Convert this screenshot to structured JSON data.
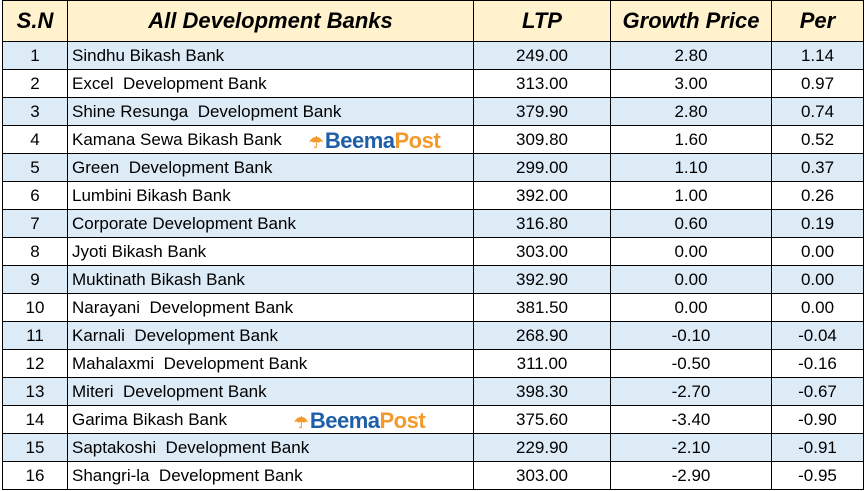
{
  "headers": {
    "sn": "S.N",
    "name": "All Development Banks",
    "ltp": "LTP",
    "growth": "Growth Price",
    "per": "Per"
  },
  "watermark": {
    "part1": "Beema",
    "part2": "Post",
    "icon": "umbrella-icon"
  },
  "rows": [
    {
      "sn": "1",
      "name": "Sindhu Bikash Bank",
      "ltp": "249.00",
      "growth": "2.80",
      "per": "1.14"
    },
    {
      "sn": "2",
      "name": "Excel  Development Bank",
      "ltp": "313.00",
      "growth": "3.00",
      "per": "0.97"
    },
    {
      "sn": "3",
      "name": "Shine Resunga  Development Bank",
      "ltp": "379.90",
      "growth": "2.80",
      "per": "0.74"
    },
    {
      "sn": "4",
      "name": "Kamana Sewa Bikash Bank",
      "ltp": "309.80",
      "growth": "1.60",
      "per": "0.52"
    },
    {
      "sn": "5",
      "name": "Green  Development Bank",
      "ltp": "299.00",
      "growth": "1.10",
      "per": "0.37"
    },
    {
      "sn": "6",
      "name": "Lumbini Bikash Bank",
      "ltp": "392.00",
      "growth": "1.00",
      "per": "0.26"
    },
    {
      "sn": "7",
      "name": "Corporate Development Bank",
      "ltp": "316.80",
      "growth": "0.60",
      "per": "0.19"
    },
    {
      "sn": "8",
      "name": "Jyoti Bikash Bank",
      "ltp": "303.00",
      "growth": "0.00",
      "per": "0.00"
    },
    {
      "sn": "9",
      "name": "Muktinath Bikash Bank",
      "ltp": "392.90",
      "growth": "0.00",
      "per": "0.00"
    },
    {
      "sn": "10",
      "name": "Narayani  Development Bank",
      "ltp": "381.50",
      "growth": "0.00",
      "per": "0.00"
    },
    {
      "sn": "11",
      "name": "Karnali  Development Bank",
      "ltp": "268.90",
      "growth": "-0.10",
      "per": "-0.04"
    },
    {
      "sn": "12",
      "name": "Mahalaxmi  Development Bank",
      "ltp": "311.00",
      "growth": "-0.50",
      "per": "-0.16"
    },
    {
      "sn": "13",
      "name": "Miteri  Development Bank",
      "ltp": "398.30",
      "growth": "-2.70",
      "per": "-0.67"
    },
    {
      "sn": "14",
      "name": "Garima Bikash Bank",
      "ltp": "375.60",
      "growth": "-3.40",
      "per": "-0.90"
    },
    {
      "sn": "15",
      "name": "Saptakoshi  Development Bank",
      "ltp": "229.90",
      "growth": "-2.10",
      "per": "-0.91"
    },
    {
      "sn": "16",
      "name": "Shangri-la  Development Bank",
      "ltp": "303.00",
      "growth": "-2.90",
      "per": "-0.95"
    }
  ]
}
